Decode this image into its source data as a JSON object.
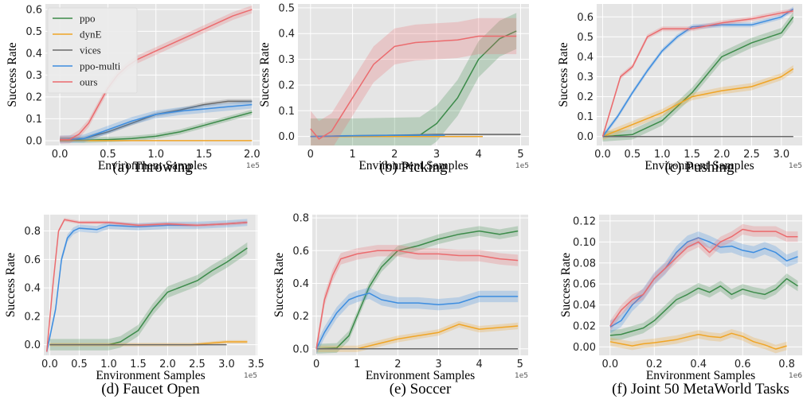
{
  "figure": {
    "y_axis_label": "Success Rate",
    "x_axis_label": "Environment Samples"
  },
  "legend": {
    "placement": "upper-left of panel (a)",
    "entries": [
      {
        "name": "ppo",
        "color": "#3c8b4a"
      },
      {
        "name": "dynE",
        "color": "#f0a526"
      },
      {
        "name": "vices",
        "color": "#6a6a6a"
      },
      {
        "name": "ppo-multi",
        "color": "#3d8de0"
      },
      {
        "name": "ours",
        "color": "#eb6b6e"
      }
    ]
  },
  "colors": {
    "plot_background": "#e5e5e5",
    "grid": "#ffffff",
    "ppo": "#3c8b4a",
    "dynE": "#f0a526",
    "vices": "#6a6a6a",
    "ppo-multi": "#3d8de0",
    "ours": "#eb6b6e"
  },
  "chart_data": [
    {
      "type": "line",
      "caption": "(a) Throwing",
      "xlabel": "Environment Samples",
      "ylabel": "Success Rate",
      "sci_label": "1e5",
      "xlim": [
        -0.15,
        2.08
      ],
      "ylim": [
        -0.022,
        0.625
      ],
      "xticks": [
        0.0,
        0.5,
        1.0,
        1.5,
        2.0
      ],
      "xtick_labels": [
        "0.0",
        "0.5",
        "1.0",
        "1.5",
        "2.0"
      ],
      "yticks": [
        0.0,
        0.1,
        0.2,
        0.3,
        0.4,
        0.5,
        0.6
      ],
      "ytick_labels": [
        "0.0",
        "0.1",
        "0.2",
        "0.3",
        "0.4",
        "0.5",
        "0.6"
      ],
      "grid": true,
      "series": [
        {
          "name": "ppo",
          "x": [
            0,
            0.25,
            0.5,
            0.75,
            1.0,
            1.25,
            1.5,
            1.75,
            2.0
          ],
          "y": [
            0.005,
            0.002,
            0.005,
            0.01,
            0.02,
            0.04,
            0.07,
            0.1,
            0.13
          ],
          "band": 0.012
        },
        {
          "name": "dynE",
          "x": [
            0,
            0.5,
            1.0,
            1.5,
            2.0
          ],
          "y": [
            0.0,
            0.0,
            0.0,
            0.0,
            0.0
          ],
          "band": 0.0
        },
        {
          "name": "vices",
          "x": [
            0,
            0.25,
            0.5,
            0.75,
            1.0,
            1.25,
            1.5,
            1.75,
            2.0
          ],
          "y": [
            0.005,
            0.01,
            0.04,
            0.08,
            0.12,
            0.14,
            0.165,
            0.18,
            0.18
          ],
          "band": 0.01
        },
        {
          "name": "ppo-multi",
          "x": [
            0,
            0.25,
            0.5,
            0.75,
            1.0,
            1.25,
            1.5,
            1.75,
            2.0
          ],
          "y": [
            0.005,
            0.01,
            0.05,
            0.09,
            0.12,
            0.135,
            0.145,
            0.155,
            0.165
          ],
          "band": 0.018
        },
        {
          "name": "ours",
          "x": [
            0,
            0.1,
            0.2,
            0.3,
            0.4,
            0.5,
            0.6,
            0.7,
            0.8,
            1.0,
            1.2,
            1.4,
            1.6,
            1.8,
            2.0
          ],
          "y": [
            0.005,
            0.005,
            0.03,
            0.08,
            0.16,
            0.24,
            0.3,
            0.34,
            0.37,
            0.41,
            0.45,
            0.49,
            0.53,
            0.57,
            0.6
          ],
          "band": 0.018
        }
      ]
    },
    {
      "type": "line",
      "caption": "(b) Picking",
      "xlabel": "Environment Samples",
      "ylabel": "Success Rate",
      "sci_label": "1e5",
      "xlim": [
        -0.3,
        5.2
      ],
      "ylim": [
        -0.035,
        0.515
      ],
      "xticks": [
        0,
        1,
        2,
        3,
        4,
        5
      ],
      "xtick_labels": [
        "0",
        "1",
        "2",
        "3",
        "4",
        "5"
      ],
      "yticks": [
        0.0,
        0.1,
        0.2,
        0.3,
        0.4,
        0.5
      ],
      "ytick_labels": [
        "0.0",
        "0.1",
        "0.2",
        "0.3",
        "0.4",
        "0.5"
      ],
      "grid": true,
      "series": [
        {
          "name": "ppo",
          "x": [
            0,
            1,
            2,
            2.6,
            3.0,
            3.5,
            4.0,
            4.5,
            4.9
          ],
          "y": [
            0.0,
            0.0,
            0.003,
            0.005,
            0.05,
            0.15,
            0.3,
            0.38,
            0.41
          ],
          "band": 0.07
        },
        {
          "name": "dynE",
          "x": [
            0,
            1,
            2,
            3,
            4,
            4.1
          ],
          "y": [
            0.0,
            0.0,
            0.0,
            0.0,
            0.0,
            0.0
          ],
          "band": 0.0
        },
        {
          "name": "vices",
          "x": [
            0,
            1,
            2,
            3,
            4,
            5
          ],
          "y": [
            0.0,
            0.003,
            0.005,
            0.008,
            0.008,
            0.008
          ],
          "band": 0.003
        },
        {
          "name": "ppo-multi",
          "x": [
            0,
            1,
            2,
            3,
            3.2
          ],
          "y": [
            0.0,
            0.003,
            0.005,
            0.005,
            0.005
          ],
          "band": 0.003
        },
        {
          "name": "ours",
          "x": [
            0,
            0.2,
            0.5,
            1.0,
            1.5,
            2.0,
            2.5,
            3.0,
            3.5,
            4.0,
            4.5,
            4.9
          ],
          "y": [
            0.03,
            -0.01,
            0.02,
            0.15,
            0.28,
            0.35,
            0.365,
            0.37,
            0.375,
            0.39,
            0.39,
            0.39
          ],
          "band": 0.07
        }
      ]
    },
    {
      "type": "line",
      "caption": "(c) Pushing",
      "xlabel": "Environment Samples",
      "ylabel": "Success Rate",
      "sci_label": "1e5",
      "xlim": [
        -0.1,
        3.35
      ],
      "ylim": [
        -0.045,
        0.665
      ],
      "xticks": [
        0.0,
        0.5,
        1.0,
        1.5,
        2.0,
        2.5,
        3.0
      ],
      "xtick_labels": [
        "0.0",
        "0.5",
        "1.0",
        "1.5",
        "2.0",
        "2.5",
        "3.0"
      ],
      "yticks": [
        0.0,
        0.1,
        0.2,
        0.3,
        0.4,
        0.5,
        0.6
      ],
      "ytick_labels": [
        "0.0",
        "0.1",
        "0.2",
        "0.3",
        "0.4",
        "0.5",
        "0.6"
      ],
      "grid": true,
      "series": [
        {
          "name": "ppo",
          "x": [
            0,
            0.5,
            1.0,
            1.5,
            2.0,
            2.5,
            3.0,
            3.2
          ],
          "y": [
            0.0,
            0.01,
            0.08,
            0.22,
            0.4,
            0.47,
            0.52,
            0.6
          ],
          "band": 0.025
        },
        {
          "name": "dynE",
          "x": [
            0,
            0.5,
            1.0,
            1.5,
            2.0,
            2.5,
            3.0,
            3.2
          ],
          "y": [
            0.0,
            0.06,
            0.12,
            0.2,
            0.23,
            0.25,
            0.3,
            0.34
          ],
          "band": 0.018
        },
        {
          "name": "vices",
          "x": [
            0,
            1,
            2,
            3,
            3.2
          ],
          "y": [
            0.0,
            0.0,
            0.0,
            0.0,
            0.0
          ],
          "band": 0.0
        },
        {
          "name": "ppo-multi",
          "x": [
            0,
            0.25,
            0.5,
            0.75,
            1.0,
            1.25,
            1.5,
            2.0,
            2.5,
            3.0,
            3.2
          ],
          "y": [
            0.0,
            0.1,
            0.22,
            0.33,
            0.43,
            0.5,
            0.55,
            0.56,
            0.56,
            0.6,
            0.64
          ],
          "band": 0.012
        },
        {
          "name": "ours",
          "x": [
            0,
            0.15,
            0.3,
            0.5,
            0.75,
            1.0,
            1.25,
            1.5,
            2.0,
            2.5,
            3.0,
            3.2
          ],
          "y": [
            0.0,
            0.15,
            0.3,
            0.35,
            0.5,
            0.54,
            0.54,
            0.54,
            0.57,
            0.59,
            0.62,
            0.63
          ],
          "band": 0.012
        }
      ]
    },
    {
      "type": "line",
      "caption": "(d) Faucet Open",
      "xlabel": "Environment Samples",
      "ylabel": "Success Rate",
      "sci_label": "1e5",
      "xlim": [
        -0.1,
        3.52
      ],
      "ylim": [
        -0.075,
        0.915
      ],
      "xticks": [
        0.0,
        0.5,
        1.0,
        1.5,
        2.0,
        2.5,
        3.0,
        3.5
      ],
      "xtick_labels": [
        "0.0",
        "0.5",
        "1.0",
        "1.5",
        "2.0",
        "2.5",
        "3.0",
        "3.5"
      ],
      "yticks": [
        0.0,
        0.2,
        0.4,
        0.6,
        0.8
      ],
      "ytick_labels": [
        "0.0",
        "0.2",
        "0.4",
        "0.6",
        "0.8"
      ],
      "grid": true,
      "series": [
        {
          "name": "ppo",
          "x": [
            0,
            0.5,
            1.0,
            1.2,
            1.5,
            1.75,
            2.0,
            2.25,
            2.5,
            2.75,
            3.0,
            3.35
          ],
          "y": [
            0.0,
            0.0,
            0.0,
            0.02,
            0.1,
            0.25,
            0.37,
            0.41,
            0.45,
            0.52,
            0.58,
            0.68
          ],
          "band": 0.04
        },
        {
          "name": "dynE",
          "x": [
            0,
            1,
            2,
            2.4,
            2.7,
            3.0,
            3.35
          ],
          "y": [
            0.0,
            0.0,
            0.0,
            0.0,
            0.01,
            0.02,
            0.02
          ],
          "band": 0.012
        },
        {
          "name": "vices",
          "x": [
            0,
            1,
            2,
            3.0
          ],
          "y": [
            0.0,
            0.0,
            0.0,
            0.0
          ],
          "band": 0.0
        },
        {
          "name": "ppo-multi",
          "x": [
            -0.05,
            0.1,
            0.2,
            0.3,
            0.4,
            0.5,
            0.8,
            1.0,
            1.5,
            2.0,
            2.5,
            3.0,
            3.35
          ],
          "y": [
            -0.05,
            0.25,
            0.6,
            0.75,
            0.8,
            0.82,
            0.81,
            0.84,
            0.83,
            0.84,
            0.84,
            0.85,
            0.86
          ],
          "band": 0.025
        },
        {
          "name": "ours",
          "x": [
            -0.05,
            0.05,
            0.15,
            0.25,
            0.5,
            1.0,
            1.5,
            2.0,
            2.5,
            3.0,
            3.35
          ],
          "y": [
            -0.05,
            0.4,
            0.8,
            0.88,
            0.86,
            0.86,
            0.84,
            0.85,
            0.84,
            0.85,
            0.86
          ],
          "band": 0.012
        }
      ]
    },
    {
      "type": "line",
      "caption": "(e) Soccer",
      "xlabel": "Environment Samples",
      "ylabel": "Success Rate",
      "sci_label": "1e5",
      "xlim": [
        -0.1,
        5.2
      ],
      "ylim": [
        -0.04,
        0.82
      ],
      "xticks": [
        0,
        1,
        2,
        3,
        4,
        5
      ],
      "xtick_labels": [
        "0",
        "1",
        "2",
        "3",
        "4",
        "5"
      ],
      "yticks": [
        0.0,
        0.2,
        0.4,
        0.6,
        0.8
      ],
      "ytick_labels": [
        "0.0",
        "0.2",
        "0.4",
        "0.6",
        "0.8"
      ],
      "grid": true,
      "series": [
        {
          "name": "ppo",
          "x": [
            0,
            0.5,
            0.8,
            1.0,
            1.3,
            1.6,
            2.0,
            2.5,
            3.0,
            3.5,
            4.0,
            4.5,
            4.95
          ],
          "y": [
            0.0,
            0.005,
            0.08,
            0.2,
            0.38,
            0.5,
            0.6,
            0.63,
            0.67,
            0.7,
            0.72,
            0.7,
            0.72
          ],
          "band": 0.03
        },
        {
          "name": "dynE",
          "x": [
            0,
            1,
            1.5,
            2.0,
            2.5,
            3.0,
            3.5,
            4.0,
            4.5,
            4.95
          ],
          "y": [
            0.0,
            0.0,
            0.03,
            0.06,
            0.08,
            0.1,
            0.15,
            0.12,
            0.13,
            0.14
          ],
          "band": 0.02
        },
        {
          "name": "vices",
          "x": [
            0,
            1,
            2,
            3,
            4,
            4.95
          ],
          "y": [
            0.0,
            0.0,
            0.0,
            0.0,
            0.0,
            0.0
          ],
          "band": 0.0
        },
        {
          "name": "ppo-multi",
          "x": [
            0,
            0.2,
            0.5,
            0.8,
            1.0,
            1.3,
            1.6,
            2.0,
            2.5,
            3.0,
            3.5,
            4.0,
            4.5,
            4.95
          ],
          "y": [
            0.0,
            0.1,
            0.22,
            0.3,
            0.32,
            0.34,
            0.3,
            0.28,
            0.28,
            0.27,
            0.28,
            0.32,
            0.32,
            0.32
          ],
          "band": 0.035
        },
        {
          "name": "ours",
          "x": [
            0,
            0.2,
            0.4,
            0.6,
            1.0,
            1.5,
            2.0,
            2.5,
            3.0,
            3.5,
            4.0,
            4.5,
            4.95
          ],
          "y": [
            0.0,
            0.3,
            0.45,
            0.55,
            0.58,
            0.6,
            0.6,
            0.58,
            0.58,
            0.57,
            0.57,
            0.55,
            0.54
          ],
          "band": 0.035
        }
      ]
    },
    {
      "type": "line",
      "caption": "(f) Joint 50 MetaWorld Tasks",
      "xlabel": "Environment Samples",
      "ylabel": "Success Rate",
      "sci_label": "1e6",
      "xlim": [
        -0.05,
        0.87
      ],
      "ylim": [
        -0.008,
        0.126
      ],
      "xticks": [
        0.0,
        0.2,
        0.4,
        0.6,
        0.8
      ],
      "xtick_labels": [
        "0.0",
        "0.2",
        "0.4",
        "0.6",
        "0.8"
      ],
      "yticks": [
        0.0,
        0.02,
        0.04,
        0.06,
        0.08,
        0.1,
        0.12
      ],
      "ytick_labels": [
        "0.00",
        "0.02",
        "0.04",
        "0.06",
        "0.08",
        "0.10",
        "0.12"
      ],
      "grid": true,
      "series": [
        {
          "name": "ppo",
          "x": [
            0.0,
            0.05,
            0.1,
            0.15,
            0.2,
            0.25,
            0.3,
            0.35,
            0.4,
            0.45,
            0.5,
            0.55,
            0.6,
            0.65,
            0.7,
            0.75,
            0.8,
            0.85
          ],
          "y": [
            0.011,
            0.012,
            0.015,
            0.018,
            0.025,
            0.035,
            0.045,
            0.05,
            0.056,
            0.052,
            0.058,
            0.05,
            0.055,
            0.052,
            0.05,
            0.055,
            0.065,
            0.058
          ],
          "band": 0.005
        },
        {
          "name": "dynE",
          "x": [
            0.0,
            0.05,
            0.1,
            0.15,
            0.2,
            0.3,
            0.4,
            0.45,
            0.5,
            0.55,
            0.6,
            0.65,
            0.7,
            0.75,
            0.8
          ],
          "y": [
            0.005,
            0.003,
            0.001,
            0.003,
            0.004,
            0.007,
            0.012,
            0.01,
            0.009,
            0.013,
            0.01,
            0.005,
            0.002,
            -0.002,
            0.001
          ],
          "band": 0.004
        },
        {
          "name": "ppo-multi",
          "x": [
            0.0,
            0.05,
            0.1,
            0.15,
            0.2,
            0.25,
            0.3,
            0.35,
            0.4,
            0.45,
            0.5,
            0.55,
            0.6,
            0.65,
            0.7,
            0.75,
            0.8,
            0.85
          ],
          "y": [
            0.019,
            0.025,
            0.04,
            0.05,
            0.065,
            0.075,
            0.09,
            0.1,
            0.104,
            0.1,
            0.095,
            0.096,
            0.092,
            0.09,
            0.094,
            0.09,
            0.082,
            0.086
          ],
          "band": 0.006
        },
        {
          "name": "ours",
          "x": [
            0.0,
            0.05,
            0.1,
            0.15,
            0.2,
            0.25,
            0.3,
            0.35,
            0.4,
            0.45,
            0.5,
            0.55,
            0.6,
            0.65,
            0.7,
            0.75,
            0.8,
            0.85
          ],
          "y": [
            0.02,
            0.035,
            0.045,
            0.05,
            0.065,
            0.075,
            0.085,
            0.095,
            0.1,
            0.09,
            0.1,
            0.105,
            0.112,
            0.11,
            0.11,
            0.11,
            0.105,
            0.105
          ],
          "band": 0.005
        }
      ]
    }
  ]
}
